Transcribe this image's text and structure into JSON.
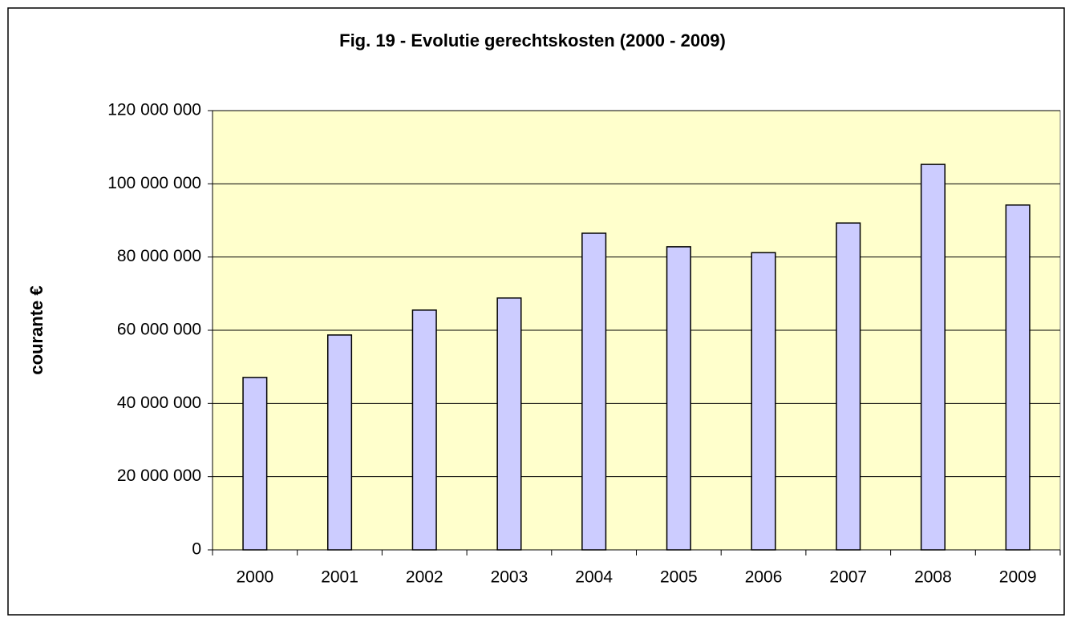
{
  "chart_data": {
    "type": "bar",
    "title": "Fig. 19 - Evolutie gerechtskosten (2000 - 2009)",
    "y_label": "courante €",
    "categories": [
      "2000",
      "2001",
      "2002",
      "2003",
      "2004",
      "2005",
      "2006",
      "2007",
      "2008",
      "2009"
    ],
    "values": [
      47100000,
      58700000,
      65500000,
      68800000,
      86500000,
      82800000,
      81200000,
      89300000,
      105300000,
      94200000
    ],
    "color": "#ccccff",
    "plot_background": "#ffffcc",
    "ylim": [
      0,
      120000000
    ],
    "yticks": [
      0,
      {
        "value": 20000000,
        "label": "20 000 000"
      },
      {
        "value": 40000000,
        "label": "40 000 000"
      },
      {
        "value": 60000000,
        "label": "60 000 000"
      },
      {
        "value": 80000000,
        "label": "80 000 000"
      },
      {
        "value": 100000000,
        "label": "100 000 000"
      },
      {
        "value": 120000000,
        "label": "120 000 000"
      }
    ],
    "grid": true
  }
}
